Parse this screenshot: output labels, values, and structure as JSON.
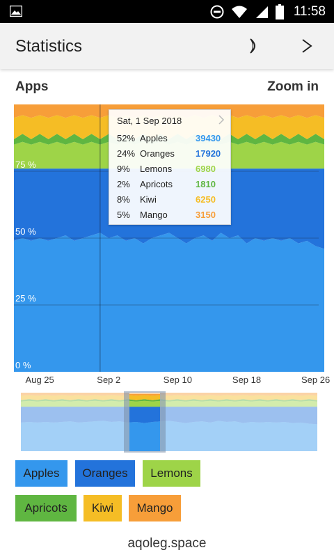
{
  "status_bar": {
    "time": "11:58"
  },
  "app_bar": {
    "title": "Statistics",
    "theme_icon": "moon-icon",
    "next_icon": "chevron-right-icon"
  },
  "section": {
    "title": "Apps",
    "zoom": "Zoom in"
  },
  "tooltip": {
    "date": "Sat, 1 Sep 2018",
    "rows": [
      {
        "pct": "52%",
        "name": "Apples",
        "value": "39430",
        "color": "#3497ED"
      },
      {
        "pct": "24%",
        "name": "Oranges",
        "value": "17920",
        "color": "#2373DB"
      },
      {
        "pct": "9%",
        "name": "Lemons",
        "value": "6980",
        "color": "#9ED448"
      },
      {
        "pct": "2%",
        "name": "Apricots",
        "value": "1810",
        "color": "#5FB641"
      },
      {
        "pct": "8%",
        "name": "Kiwi",
        "value": "6250",
        "color": "#F5BD25"
      },
      {
        "pct": "5%",
        "name": "Mango",
        "value": "3150",
        "color": "#F79E39"
      }
    ]
  },
  "legend": [
    {
      "label": "Apples",
      "color": "#3497ED"
    },
    {
      "label": "Oranges",
      "color": "#2373DB"
    },
    {
      "label": "Lemons",
      "color": "#9ED448"
    },
    {
      "label": "Apricots",
      "color": "#5FB641"
    },
    {
      "label": "Kiwi",
      "color": "#F5BD25"
    },
    {
      "label": "Mango",
      "color": "#F79E39"
    }
  ],
  "footer": "aqoleg.space",
  "chart_data": {
    "type": "area",
    "stacked": true,
    "percentage": true,
    "title": "Apps",
    "xlabel": "",
    "ylabel": "",
    "ylim": [
      0,
      100
    ],
    "y_ticks": [
      "0 %",
      "25 %",
      "50 %",
      "75 %"
    ],
    "x_ticks": [
      "Aug 25",
      "Sep 2",
      "Sep 10",
      "Sep 18",
      "Sep 26"
    ],
    "x": [
      "Aug 22",
      "Aug 23",
      "Aug 24",
      "Aug 25",
      "Aug 26",
      "Aug 27",
      "Aug 28",
      "Aug 29",
      "Aug 30",
      "Aug 31",
      "Sep 1",
      "Sep 2",
      "Sep 3",
      "Sep 4",
      "Sep 5",
      "Sep 6",
      "Sep 7",
      "Sep 8",
      "Sep 9",
      "Sep 10",
      "Sep 11",
      "Sep 12",
      "Sep 13",
      "Sep 14",
      "Sep 15",
      "Sep 16",
      "Sep 17",
      "Sep 18",
      "Sep 19",
      "Sep 20",
      "Sep 21",
      "Sep 22",
      "Sep 23",
      "Sep 24",
      "Sep 25",
      "Sep 26",
      "Sep 27"
    ],
    "series": [
      {
        "name": "Apples",
        "color": "#3497ED",
        "values": [
          49,
          50,
          49,
          50,
          49,
          50,
          51,
          49,
          50,
          51,
          52,
          50,
          51,
          49,
          50,
          48,
          50,
          51,
          52,
          50,
          48,
          50,
          51,
          49,
          52,
          50,
          51,
          48,
          50,
          49,
          50,
          49,
          50,
          48,
          49,
          47,
          46
        ]
      },
      {
        "name": "Oranges",
        "color": "#2373DB",
        "values": [
          27,
          26,
          27,
          26,
          27,
          26,
          25,
          27,
          26,
          25,
          24,
          26,
          25,
          27,
          26,
          28,
          26,
          25,
          24,
          26,
          28,
          26,
          25,
          27,
          24,
          26,
          25,
          28,
          26,
          27,
          26,
          27,
          26,
          28,
          27,
          29,
          30
        ]
      },
      {
        "name": "Lemons",
        "color": "#9ED448",
        "values": [
          9,
          10,
          9,
          10,
          9,
          10,
          9,
          10,
          9,
          10,
          9,
          10,
          9,
          10,
          9,
          10,
          9,
          10,
          9,
          10,
          9,
          10,
          9,
          10,
          9,
          10,
          9,
          10,
          9,
          10,
          9,
          10,
          9,
          10,
          9,
          10,
          9
        ]
      },
      {
        "name": "Apricots",
        "color": "#5FB641",
        "values": [
          2,
          3,
          2,
          3,
          2,
          3,
          2,
          3,
          2,
          3,
          2,
          3,
          2,
          3,
          2,
          3,
          2,
          3,
          2,
          3,
          2,
          3,
          2,
          3,
          2,
          3,
          2,
          3,
          2,
          3,
          2,
          3,
          2,
          3,
          2,
          3,
          2
        ]
      },
      {
        "name": "Kiwi",
        "color": "#F5BD25",
        "values": [
          8,
          7,
          8,
          7,
          8,
          7,
          8,
          7,
          8,
          7,
          8,
          7,
          8,
          7,
          8,
          7,
          8,
          7,
          8,
          7,
          8,
          7,
          8,
          7,
          8,
          7,
          8,
          7,
          8,
          7,
          8,
          7,
          8,
          7,
          8,
          7,
          8
        ]
      },
      {
        "name": "Mango",
        "color": "#F79E39",
        "values": [
          5,
          4,
          5,
          4,
          5,
          4,
          5,
          4,
          5,
          4,
          5,
          4,
          5,
          4,
          5,
          4,
          5,
          4,
          5,
          4,
          5,
          4,
          5,
          4,
          5,
          4,
          5,
          4,
          5,
          4,
          5,
          4,
          5,
          4,
          5,
          4,
          5
        ]
      }
    ],
    "highlight_x": "Sep 1",
    "grid": true,
    "legend_position": "bottom"
  }
}
